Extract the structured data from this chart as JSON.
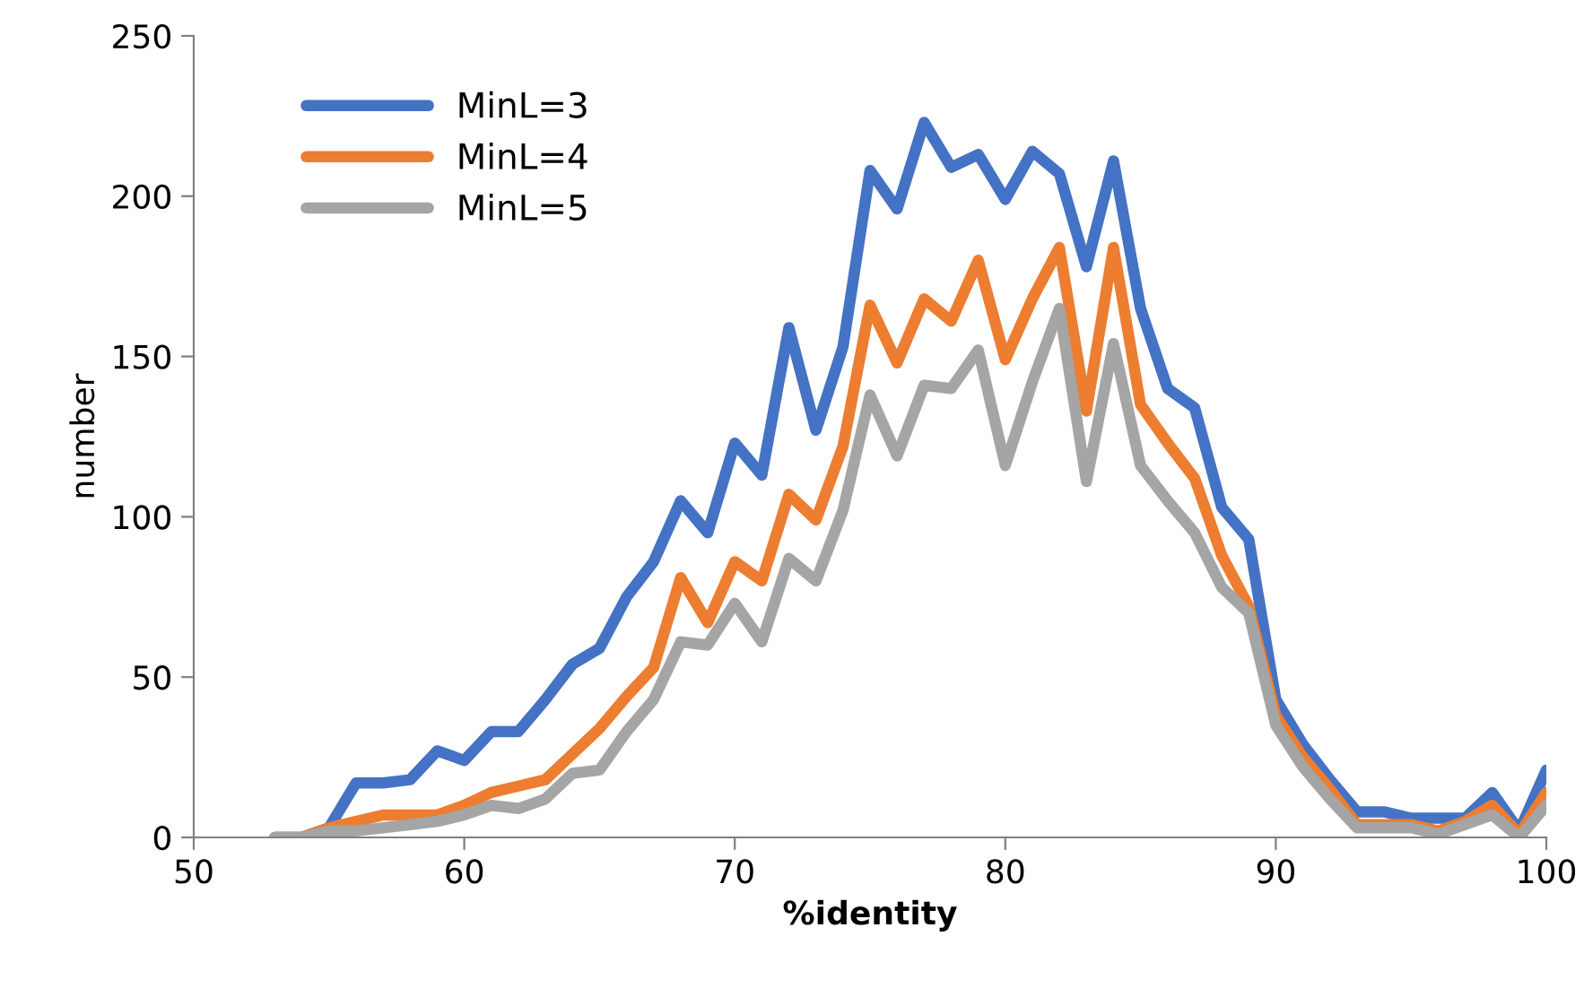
{
  "chart_data": {
    "type": "line",
    "xlabel": "%identity",
    "ylabel": "number",
    "x": [
      53,
      54,
      55,
      56,
      57,
      58,
      59,
      60,
      61,
      62,
      63,
      64,
      65,
      66,
      67,
      68,
      69,
      70,
      71,
      72,
      73,
      74,
      75,
      76,
      77,
      78,
      79,
      80,
      81,
      82,
      83,
      84,
      85,
      86,
      87,
      88,
      89,
      90,
      91,
      92,
      93,
      94,
      95,
      96,
      97,
      98,
      99,
      100
    ],
    "series": [
      {
        "name": "MinL=3",
        "color": "#4472c4",
        "values": [
          0,
          0,
          3,
          17,
          17,
          18,
          27,
          24,
          33,
          33,
          43,
          54,
          59,
          75,
          86,
          105,
          95,
          123,
          113,
          159,
          127,
          153,
          208,
          196,
          223,
          209,
          213,
          199,
          214,
          207,
          178,
          211,
          165,
          140,
          134,
          103,
          93,
          43,
          29,
          18,
          8,
          8,
          6,
          6,
          6,
          14,
          2,
          21
        ]
      },
      {
        "name": "MinL=4",
        "color": "#ed7d31",
        "values": [
          0,
          0,
          3,
          5,
          7,
          7,
          7,
          10,
          14,
          16,
          18,
          26,
          34,
          44,
          53,
          81,
          67,
          86,
          80,
          107,
          99,
          122,
          166,
          148,
          168,
          161,
          180,
          149,
          168,
          184,
          133,
          184,
          135,
          123,
          112,
          88,
          72,
          38,
          25,
          15,
          4,
          4,
          4,
          2,
          5,
          10,
          1,
          14
        ]
      },
      {
        "name": "MinL=5",
        "color": "#a5a5a5",
        "values": [
          0,
          0,
          2,
          2,
          3,
          4,
          5,
          7,
          10,
          9,
          12,
          20,
          21,
          33,
          43,
          61,
          60,
          73,
          61,
          87,
          80,
          102,
          138,
          119,
          141,
          140,
          152,
          116,
          142,
          165,
          111,
          154,
          116,
          105,
          95,
          78,
          70,
          35,
          22,
          12,
          3,
          3,
          3,
          1,
          4,
          7,
          0,
          10
        ]
      }
    ],
    "xlim": [
      50,
      100
    ],
    "xticks": [
      50,
      60,
      70,
      80,
      90,
      100
    ],
    "ylim": [
      0,
      250
    ],
    "yticks": [
      0,
      50,
      100,
      150,
      200,
      250
    ],
    "grid": false,
    "legend": "top left",
    "marker": "none",
    "line_style": "solid"
  }
}
